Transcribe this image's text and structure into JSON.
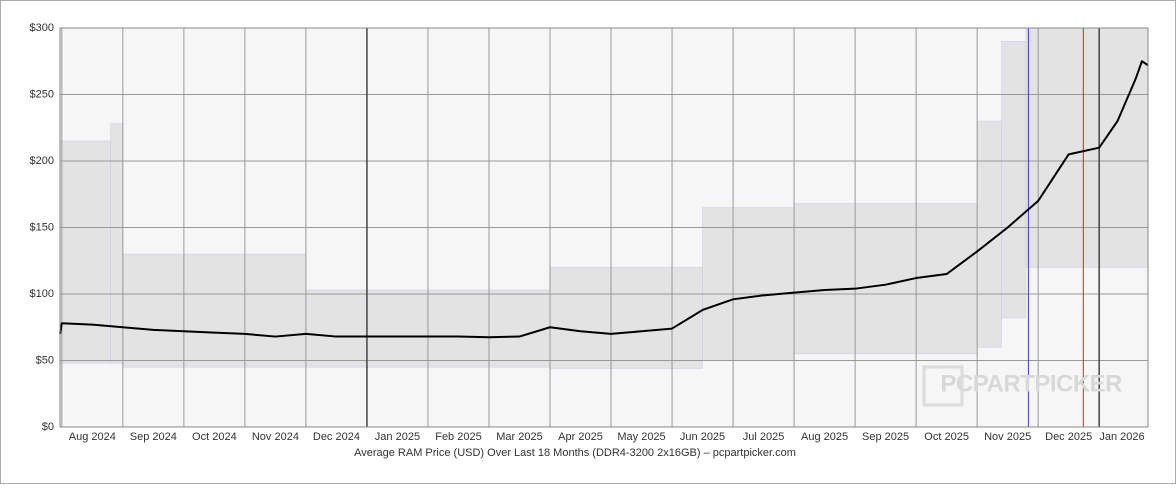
{
  "chart_data": {
    "type": "line",
    "title": "Average RAM Price (USD) Over Last 18 Months (DDR4-3200 2x16GB) – pcpartpicker.com",
    "watermark": "PCPARTPICKER",
    "xlim": [
      -0.03,
      17.8
    ],
    "xticks": [
      {
        "value": 0,
        "label": "Aug 2024"
      },
      {
        "value": 1,
        "label": "Sep 2024"
      },
      {
        "value": 2,
        "label": "Oct 2024"
      },
      {
        "value": 3,
        "label": "Nov 2024"
      },
      {
        "value": 4,
        "label": "Dec 2024"
      },
      {
        "value": 5,
        "label": "Jan 2025"
      },
      {
        "value": 6,
        "label": "Feb 2025"
      },
      {
        "value": 7,
        "label": "Mar 2025"
      },
      {
        "value": 8,
        "label": "Apr 2025"
      },
      {
        "value": 9,
        "label": "May 2025"
      },
      {
        "value": 10,
        "label": "Jun 2025"
      },
      {
        "value": 11,
        "label": "Jul 2025"
      },
      {
        "value": 12,
        "label": "Aug 2025"
      },
      {
        "value": 13,
        "label": "Sep 2025"
      },
      {
        "value": 14,
        "label": "Oct 2025"
      },
      {
        "value": 15,
        "label": "Nov 2025"
      },
      {
        "value": 16,
        "label": "Dec 2025"
      },
      {
        "value": 17,
        "label": "Jan 2026"
      }
    ],
    "ylim": [
      0,
      300
    ],
    "yticks": [
      {
        "value": 0,
        "label": "$0"
      },
      {
        "value": 50,
        "label": "$50"
      },
      {
        "value": 100,
        "label": "$100"
      },
      {
        "value": 150,
        "label": "$150"
      },
      {
        "value": 200,
        "label": "$200"
      },
      {
        "value": 250,
        "label": "$250"
      },
      {
        "value": 300,
        "label": "$300"
      }
    ],
    "grid": true,
    "range": {
      "color": "#e3e3e3",
      "bins": [
        -0.03,
        0.8,
        1.0,
        4.0,
        8.0,
        10.5,
        12.0,
        15.0,
        15.4,
        15.8,
        17.8
      ],
      "upper": [
        215,
        228,
        130,
        103,
        120,
        165,
        168,
        230,
        290,
        300
      ],
      "lower": [
        48,
        48,
        45,
        45,
        44,
        50,
        55,
        60,
        82,
        120
      ]
    },
    "series": [
      {
        "color": "#000000",
        "x": [
          -0.03,
          0,
          0.5,
          1,
          1.5,
          2,
          2.5,
          3,
          3.5,
          4,
          4.5,
          5,
          5.5,
          6,
          6.5,
          7,
          7.5,
          8,
          8.5,
          9,
          9.5,
          10,
          10.5,
          11,
          11.5,
          12,
          12.5,
          13,
          13.5,
          14,
          14.5,
          15,
          15.5,
          16,
          16.5,
          17,
          17.3,
          17.6,
          17.7,
          17.8
        ],
        "values": [
          70,
          78,
          77,
          75,
          73,
          72,
          71,
          70,
          68,
          70,
          68,
          68,
          68,
          68,
          68,
          67.5,
          68,
          75,
          72,
          70,
          72,
          74,
          88,
          96,
          99,
          101,
          103,
          104,
          107,
          112,
          115,
          132,
          150,
          170,
          205,
          210,
          230,
          262,
          275,
          272
        ]
      }
    ],
    "vlines": [
      {
        "x": 15.84,
        "color": "#3b3bd6"
      },
      {
        "x": 16.74,
        "color": "#e02020"
      }
    ]
  }
}
